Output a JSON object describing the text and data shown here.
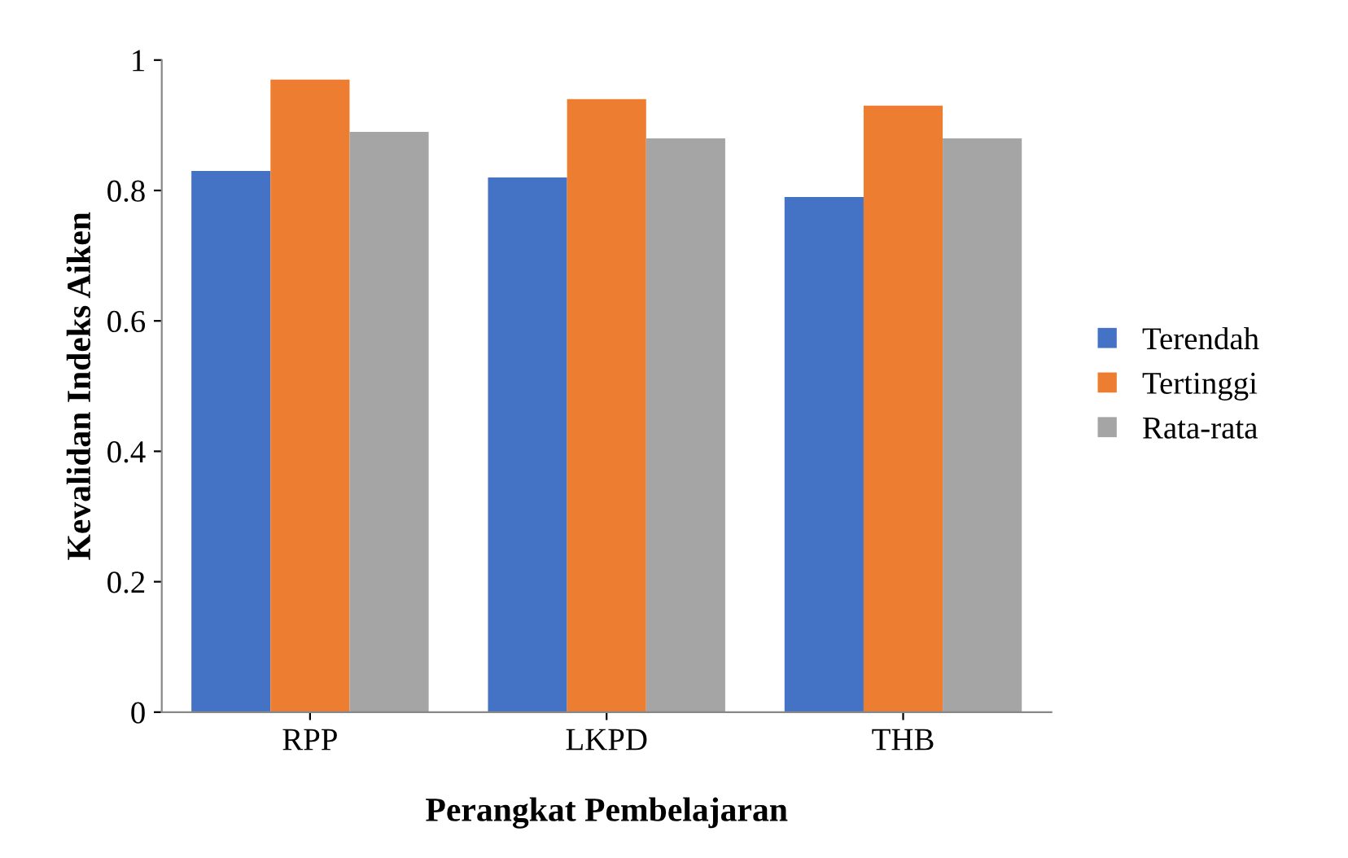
{
  "chart_data": {
    "type": "bar",
    "xlabel": "Perangkat Pembelajaran",
    "ylabel": "Kevalidan Indeks Aiken",
    "categories": [
      "RPP",
      "LKPD",
      "THB"
    ],
    "series": [
      {
        "name": "Terendah",
        "color": "#4472c4",
        "values": [
          0.83,
          0.82,
          0.79
        ]
      },
      {
        "name": "Tertinggi",
        "color": "#ed7d31",
        "values": [
          0.97,
          0.94,
          0.93
        ]
      },
      {
        "name": "Rata-rata",
        "color": "#a5a5a5",
        "values": [
          0.89,
          0.88,
          0.88
        ]
      }
    ],
    "ylim": [
      0,
      1
    ],
    "yticks": [
      0,
      0.2,
      0.4,
      0.6,
      0.8,
      1
    ],
    "grid": false,
    "legend": "right"
  }
}
